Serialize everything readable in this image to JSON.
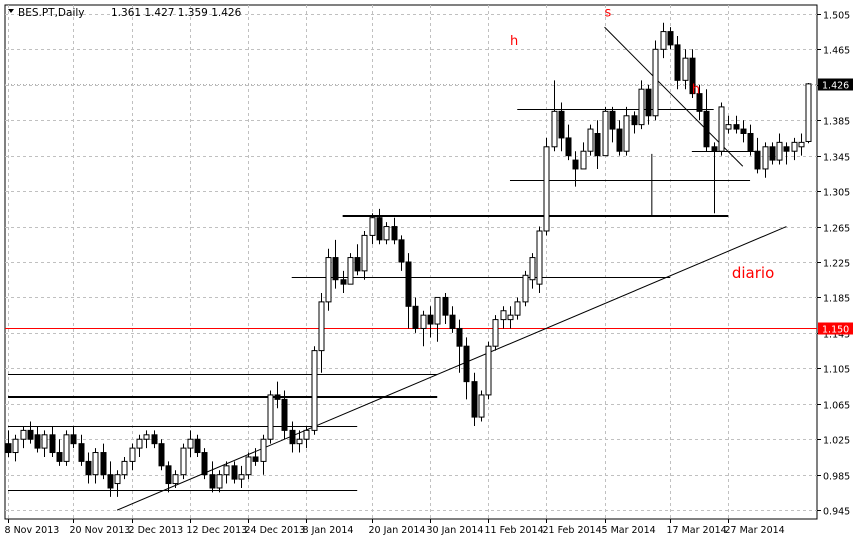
{
  "header": {
    "symbol_label": "BES.PT,Daily",
    "ohlc_label": "1.361 1.427 1.359 1.426"
  },
  "chart_data": {
    "type": "candlestick",
    "symbol": "BES.PT",
    "timeframe": "Daily",
    "ylim": [
      0.935,
      1.515
    ],
    "y_ticks": [
      "1.505",
      "1.465",
      "1.425",
      "1.385",
      "1.345",
      "1.305",
      "1.265",
      "1.225",
      "1.185",
      "1.145",
      "1.105",
      "1.065",
      "1.025",
      "0.985",
      "0.945"
    ],
    "x_tick_labels": [
      "8 Nov 2013",
      "20 Nov 2013",
      "2 Dec 2013",
      "12 Dec 2013",
      "24 Dec 2013",
      "8 Jan 2014",
      "20 Jan 2014",
      "30 Jan 2014",
      "11 Feb 2014",
      "21 Feb 2014",
      "5 Mar 2014",
      "17 Mar 2014",
      "27 Mar 2014"
    ],
    "x_tick_bars": [
      0,
      9,
      17,
      25,
      33,
      41,
      50,
      58,
      66,
      74,
      82,
      91,
      99
    ],
    "current_price": "1.426",
    "red_level": "1.150",
    "grid": true,
    "colors": {
      "bull": "#ffffff",
      "bear": "#000000",
      "outline": "#000000",
      "grid": "#c0c0c0",
      "red": "#ff0000"
    },
    "candles": [
      [
        1.02,
        1.035,
        1.005,
        1.01
      ],
      [
        1.01,
        1.03,
        1.0,
        1.025
      ],
      [
        1.025,
        1.04,
        1.015,
        1.035
      ],
      [
        1.035,
        1.045,
        1.02,
        1.025
      ],
      [
        1.03,
        1.04,
        1.01,
        1.015
      ],
      [
        1.015,
        1.035,
        1.005,
        1.03
      ],
      [
        1.03,
        1.04,
        1.005,
        1.01
      ],
      [
        1.01,
        1.025,
        0.995,
        1.0
      ],
      [
        1.0,
        1.035,
        0.995,
        1.03
      ],
      [
        1.03,
        1.04,
        1.015,
        1.02
      ],
      [
        1.02,
        1.03,
        0.995,
        1.0
      ],
      [
        1.0,
        1.01,
        0.975,
        0.985
      ],
      [
        0.985,
        1.015,
        0.975,
        1.01
      ],
      [
        1.01,
        1.02,
        0.98,
        0.985
      ],
      [
        0.985,
        1.0,
        0.96,
        0.97
      ],
      [
        0.975,
        0.99,
        0.96,
        0.985
      ],
      [
        0.985,
        1.005,
        0.98,
        1.0
      ],
      [
        1.0,
        1.02,
        0.99,
        1.015
      ],
      [
        1.015,
        1.03,
        1.005,
        1.025
      ],
      [
        1.025,
        1.035,
        1.015,
        1.03
      ],
      [
        1.03,
        1.035,
        1.015,
        1.02
      ],
      [
        1.02,
        1.025,
        0.99,
        0.995
      ],
      [
        0.995,
        1.0,
        0.965,
        0.975
      ],
      [
        0.975,
        0.99,
        0.97,
        0.985
      ],
      [
        0.985,
        1.02,
        0.98,
        1.015
      ],
      [
        1.015,
        1.035,
        1.005,
        1.025
      ],
      [
        1.025,
        1.03,
        1.005,
        1.01
      ],
      [
        1.01,
        1.015,
        0.98,
        0.985
      ],
      [
        0.985,
        1.0,
        0.965,
        0.97
      ],
      [
        0.97,
        0.99,
        0.965,
        0.985
      ],
      [
        0.985,
        1.0,
        0.975,
        0.995
      ],
      [
        0.995,
        1.0,
        0.975,
        0.98
      ],
      [
        0.98,
        0.995,
        0.97,
        0.985
      ],
      [
        0.985,
        1.01,
        0.98,
        1.005
      ],
      [
        1.005,
        1.015,
        0.995,
        1.0
      ],
      [
        1.0,
        1.03,
        0.985,
        1.025
      ],
      [
        1.025,
        1.08,
        1.02,
        1.075
      ],
      [
        1.075,
        1.09,
        1.06,
        1.07
      ],
      [
        1.07,
        1.08,
        1.025,
        1.035
      ],
      [
        1.035,
        1.045,
        1.01,
        1.02
      ],
      [
        1.02,
        1.035,
        1.01,
        1.025
      ],
      [
        1.025,
        1.04,
        1.015,
        1.035
      ],
      [
        1.035,
        1.13,
        1.03,
        1.125
      ],
      [
        1.125,
        1.19,
        1.1,
        1.18
      ],
      [
        1.18,
        1.24,
        1.17,
        1.23
      ],
      [
        1.23,
        1.25,
        1.195,
        1.205
      ],
      [
        1.205,
        1.215,
        1.19,
        1.2
      ],
      [
        1.2,
        1.235,
        1.2,
        1.23
      ],
      [
        1.23,
        1.245,
        1.21,
        1.215
      ],
      [
        1.215,
        1.26,
        1.205,
        1.255
      ],
      [
        1.255,
        1.28,
        1.245,
        1.275
      ],
      [
        1.275,
        1.285,
        1.245,
        1.25
      ],
      [
        1.25,
        1.27,
        1.245,
        1.265
      ],
      [
        1.265,
        1.275,
        1.245,
        1.25
      ],
      [
        1.25,
        1.255,
        1.215,
        1.225
      ],
      [
        1.225,
        1.235,
        1.15,
        1.175
      ],
      [
        1.175,
        1.185,
        1.145,
        1.15
      ],
      [
        1.15,
        1.17,
        1.13,
        1.165
      ],
      [
        1.165,
        1.175,
        1.14,
        1.155
      ],
      [
        1.155,
        1.185,
        1.135,
        1.185
      ],
      [
        1.185,
        1.19,
        1.155,
        1.165
      ],
      [
        1.165,
        1.175,
        1.145,
        1.15
      ],
      [
        1.15,
        1.16,
        1.1,
        1.13
      ],
      [
        1.13,
        1.14,
        1.07,
        1.09
      ],
      [
        1.09,
        1.1,
        1.04,
        1.05
      ],
      [
        1.05,
        1.08,
        1.045,
        1.075
      ],
      [
        1.075,
        1.135,
        1.07,
        1.13
      ],
      [
        1.13,
        1.165,
        1.125,
        1.16
      ],
      [
        1.16,
        1.175,
        1.15,
        1.17
      ],
      [
        1.16,
        1.175,
        1.15,
        1.165
      ],
      [
        1.165,
        1.185,
        1.16,
        1.18
      ],
      [
        1.18,
        1.215,
        1.175,
        1.21
      ],
      [
        1.205,
        1.235,
        1.195,
        1.23
      ],
      [
        1.2,
        1.265,
        1.19,
        1.26
      ],
      [
        1.26,
        1.365,
        1.255,
        1.355
      ],
      [
        1.355,
        1.43,
        1.35,
        1.395
      ],
      [
        1.395,
        1.405,
        1.35,
        1.365
      ],
      [
        1.365,
        1.38,
        1.34,
        1.345
      ],
      [
        1.34,
        1.35,
        1.31,
        1.33
      ],
      [
        1.33,
        1.36,
        1.33,
        1.35
      ],
      [
        1.35,
        1.38,
        1.345,
        1.375
      ],
      [
        1.37,
        1.385,
        1.33,
        1.345
      ],
      [
        1.345,
        1.4,
        1.345,
        1.395
      ],
      [
        1.395,
        1.4,
        1.36,
        1.375
      ],
      [
        1.375,
        1.385,
        1.345,
        1.35
      ],
      [
        1.35,
        1.4,
        1.345,
        1.39
      ],
      [
        1.39,
        1.395,
        1.37,
        1.38
      ],
      [
        1.38,
        1.43,
        1.375,
        1.42
      ],
      [
        1.42,
        1.425,
        1.38,
        1.39
      ],
      [
        1.39,
        1.475,
        1.385,
        1.465
      ],
      [
        1.465,
        1.495,
        1.455,
        1.485
      ],
      [
        1.485,
        1.49,
        1.465,
        1.47
      ],
      [
        1.47,
        1.48,
        1.42,
        1.43
      ],
      [
        1.43,
        1.465,
        1.42,
        1.455
      ],
      [
        1.455,
        1.465,
        1.41,
        1.415
      ],
      [
        1.415,
        1.425,
        1.385,
        1.395
      ],
      [
        1.395,
        1.42,
        1.35,
        1.355
      ],
      [
        1.355,
        1.36,
        1.28,
        1.35
      ],
      [
        1.35,
        1.405,
        1.345,
        1.4
      ],
      [
        1.375,
        1.39,
        1.37,
        1.38
      ],
      [
        1.38,
        1.39,
        1.37,
        1.375
      ],
      [
        1.375,
        1.385,
        1.36,
        1.37
      ],
      [
        1.37,
        1.38,
        1.345,
        1.35
      ],
      [
        1.35,
        1.365,
        1.325,
        1.33
      ],
      [
        1.33,
        1.36,
        1.32,
        1.355
      ],
      [
        1.355,
        1.36,
        1.335,
        1.34
      ],
      [
        1.34,
        1.37,
        1.335,
        1.36
      ],
      [
        1.355,
        1.36,
        1.335,
        1.35
      ],
      [
        1.35,
        1.365,
        1.34,
        1.36
      ],
      [
        1.355,
        1.37,
        1.345,
        1.36
      ],
      [
        1.361,
        1.427,
        1.359,
        1.426
      ]
    ],
    "annotations": [
      {
        "text": "s",
        "bar": 82,
        "price": 1.502
      },
      {
        "text": "h",
        "bar": 69,
        "price": 1.47
      },
      {
        "text": "h",
        "bar": 94,
        "price": 1.415
      },
      {
        "text": "diario",
        "bar": 99.5,
        "price": 1.207
      }
    ],
    "trendlines": [
      {
        "x1": 15,
        "y1": 0.945,
        "x2": 107,
        "y2": 1.265,
        "width": 1
      },
      {
        "x1": 82,
        "y1": 1.49,
        "x2": 101,
        "y2": 1.333,
        "width": 1
      }
    ],
    "horizontal_levels": [
      {
        "price": 1.277,
        "x1": 46,
        "x2": 99,
        "width": 2
      },
      {
        "price": 1.318,
        "x1": 69,
        "x2": 102,
        "width": 1
      },
      {
        "price": 1.35,
        "x1": 94,
        "x2": 103,
        "width": 1
      },
      {
        "price": 1.398,
        "x1": 70,
        "x2": 97,
        "width": 1
      },
      {
        "price": 1.208,
        "x1": 39,
        "x2": 91,
        "width": 1
      },
      {
        "price": 1.099,
        "x1": 0,
        "x2": 59,
        "width": 1
      },
      {
        "price": 1.073,
        "x1": 0,
        "x2": 59,
        "width": 2
      },
      {
        "price": 1.04,
        "x1": 0,
        "x2": 48,
        "width": 1
      },
      {
        "price": 0.968,
        "x1": 0,
        "x2": 48,
        "width": 1
      }
    ],
    "vertical_marks": [
      {
        "bar": 88.5,
        "price_low": 1.277,
        "price_high": 1.347
      }
    ]
  }
}
